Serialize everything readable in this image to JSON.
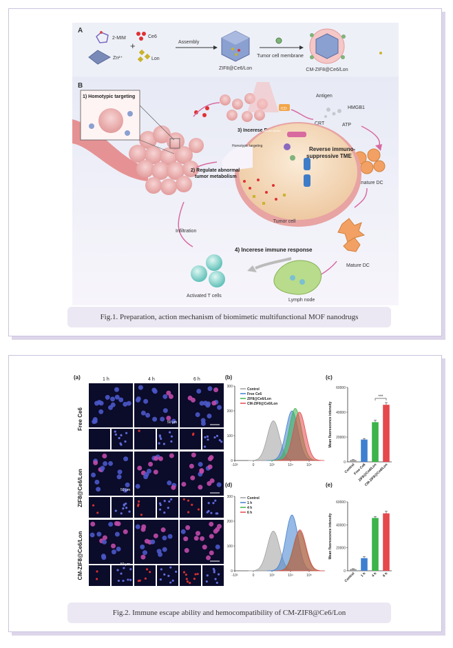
{
  "figure1": {
    "panel_a": "A",
    "panel_b": "B",
    "labels": {
      "mim": "2-MIM",
      "ce6": "Ce6",
      "zn": "Zn²⁺",
      "lon": "Lon",
      "assembly": "Assembly",
      "zif8": "ZIF8@Ce6/Lon",
      "tumor_membrane": "Tumor cell membrane",
      "cm_zif8": "CM-ZIF8@Ce6/Lon",
      "homotypic": "1) Homotypic targeting",
      "increase_pdt": "3) Incerese PDT",
      "antigen": "Antigen",
      "hmgb1": "HMGB1",
      "crt": "CRT",
      "atp": "ATP",
      "reg_abnormal": "2) Regulate abnormal tumor metabolism",
      "reverse": "Reverse immuno-suppressive TME",
      "immature_dc": "Immature DC",
      "infiltration": "Infiltration",
      "tumor_cell": "Tumor cell",
      "increase_immune": "4) Incerese  immune response",
      "mature_dc": "Mature DC",
      "activated_t": "Activated T cells",
      "lymph_node": "Lymph node"
    },
    "caption": "Fig.1. Preparation, action mechanism of biomimetic multifunctional MOF nanodrugs"
  },
  "figure2": {
    "panel_a": "(a)",
    "time_labels": [
      "1 h",
      "4 h",
      "6 h"
    ],
    "row_labels": [
      "Free Ce6",
      "ZIF8@Ce6/Lon",
      "CM-ZIF8@Ce6/Lon"
    ],
    "scale_bar": "50 μm",
    "panel_b": "(b)",
    "legend_b": [
      "Control",
      "Free Ce6",
      "ZIF8@Ce6/Lon",
      "CM-ZIF8@Ce6/Lon"
    ],
    "panel_c": "(c)",
    "panel_d": "(d)",
    "legend_d": [
      "Control",
      "1 h",
      "4 h",
      "6 h"
    ],
    "panel_e": "(e)",
    "significance": "***",
    "caption": "Fig.2. Immune escape ability and hemocompatibility of CM-ZIF8@Ce6/Lon"
  },
  "colors": {
    "control": "#9e9e9e",
    "blue": "#3f7fd0",
    "green": "#3cb44b",
    "red": "#e5484d"
  },
  "chart_data": [
    {
      "type": "area",
      "panel": "(b)",
      "xlabel": "",
      "ylabel": "",
      "x_scale": "log",
      "x_ticks": [
        "-10³",
        "0",
        "10³",
        "10⁴",
        "10⁵"
      ],
      "ylim": [
        0,
        300
      ],
      "y_ticks": [
        0,
        100,
        200,
        300
      ],
      "series": [
        {
          "name": "Control",
          "color": "#9e9e9e",
          "peak_x": 1200,
          "peak_y": 160
        },
        {
          "name": "Free Ce6",
          "color": "#3f7fd0",
          "peak_x": 12000,
          "peak_y": 200
        },
        {
          "name": "ZIF8@Ce6/Lon",
          "color": "#3cb44b",
          "peak_x": 18000,
          "peak_y": 210
        },
        {
          "name": "CM-ZIF8@Ce6/Lon",
          "color": "#e5484d",
          "peak_x": 30000,
          "peak_y": 195
        }
      ]
    },
    {
      "type": "bar",
      "panel": "(c)",
      "ylabel": "Mean fluorescence intensity",
      "ylim": [
        0,
        60000
      ],
      "y_ticks": [
        0,
        20000,
        40000,
        60000
      ],
      "categories": [
        "Control",
        "Free Ce6",
        "ZIF8@Ce6/Lon",
        "CM-ZIF8@Ce6/Lon"
      ],
      "values": [
        1500,
        18000,
        32000,
        46000
      ],
      "errors": [
        300,
        800,
        1500,
        1800
      ],
      "colors": [
        "#9e9e9e",
        "#3f7fd0",
        "#3cb44b",
        "#e5484d"
      ]
    },
    {
      "type": "area",
      "panel": "(d)",
      "x_scale": "log",
      "x_ticks": [
        "-10³",
        "0",
        "10³",
        "10⁴",
        "10⁵"
      ],
      "ylim": [
        0,
        300
      ],
      "y_ticks": [
        0,
        100,
        200,
        300
      ],
      "series": [
        {
          "name": "Control",
          "color": "#9e9e9e",
          "peak_x": 1200,
          "peak_y": 160
        },
        {
          "name": "1 h",
          "color": "#3f7fd0",
          "peak_x": 12000,
          "peak_y": 225
        },
        {
          "name": "4 h",
          "color": "#3cb44b",
          "peak_x": 30000,
          "peak_y": 160
        },
        {
          "name": "6 h",
          "color": "#e5484d",
          "peak_x": 32000,
          "peak_y": 165
        }
      ]
    },
    {
      "type": "bar",
      "panel": "(e)",
      "ylabel": "Mean fluorescence intensity",
      "ylim": [
        0,
        60000
      ],
      "y_ticks": [
        0,
        20000,
        40000,
        60000
      ],
      "categories": [
        "Control",
        "1 h",
        "4 h",
        "6 h"
      ],
      "values": [
        1500,
        11000,
        46000,
        50000
      ],
      "errors": [
        300,
        1200,
        1200,
        1800
      ],
      "colors": [
        "#9e9e9e",
        "#3f7fd0",
        "#3cb44b",
        "#e5484d"
      ]
    }
  ]
}
